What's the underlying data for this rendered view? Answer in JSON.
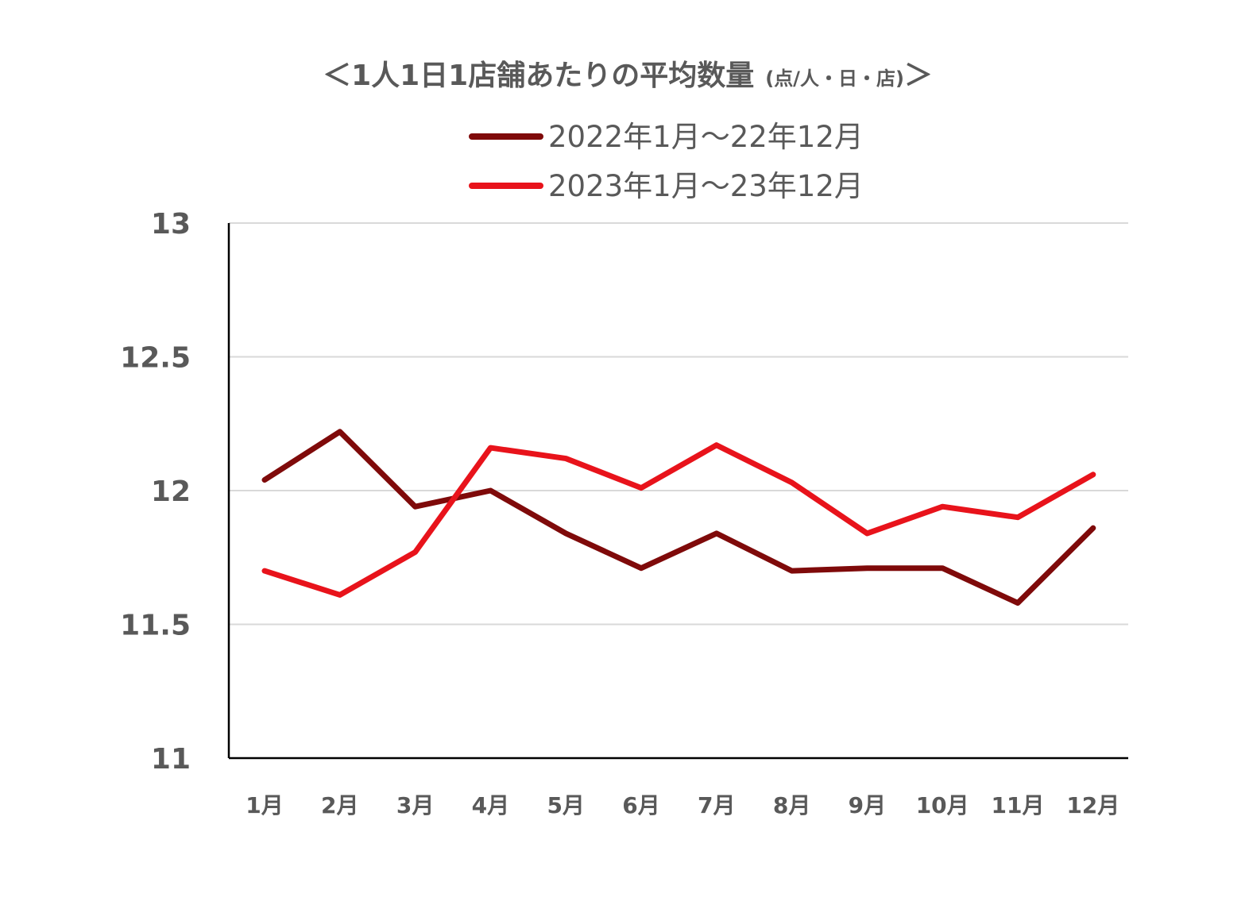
{
  "chart_data": {
    "type": "line",
    "title": "＜1人1日1店舗あたりの平均数量",
    "title_unit": "(点/人・日・店)",
    "title_close": "＞",
    "xlabel": "",
    "ylabel": "",
    "categories": [
      "1月",
      "2月",
      "3月",
      "4月",
      "5月",
      "6月",
      "7月",
      "8月",
      "9月",
      "10月",
      "11月",
      "12月"
    ],
    "ylim": [
      11,
      13
    ],
    "yticks": [
      11,
      11.5,
      12,
      12.5,
      13
    ],
    "ytick_labels": [
      "11",
      "11.5",
      "12",
      "12.5",
      "13"
    ],
    "grid": true,
    "legend_position": "top",
    "series": [
      {
        "name": "2022年1月～22年12月",
        "color": "#7f0a0a",
        "values": [
          12.04,
          12.22,
          11.94,
          12.0,
          11.84,
          11.71,
          11.84,
          11.7,
          11.71,
          11.71,
          11.58,
          11.86
        ]
      },
      {
        "name": "2023年1月～23年12月",
        "color": "#e8131b",
        "values": [
          11.7,
          11.61,
          11.77,
          12.16,
          12.12,
          12.01,
          12.17,
          12.03,
          11.84,
          11.94,
          11.9,
          12.06
        ]
      }
    ]
  }
}
